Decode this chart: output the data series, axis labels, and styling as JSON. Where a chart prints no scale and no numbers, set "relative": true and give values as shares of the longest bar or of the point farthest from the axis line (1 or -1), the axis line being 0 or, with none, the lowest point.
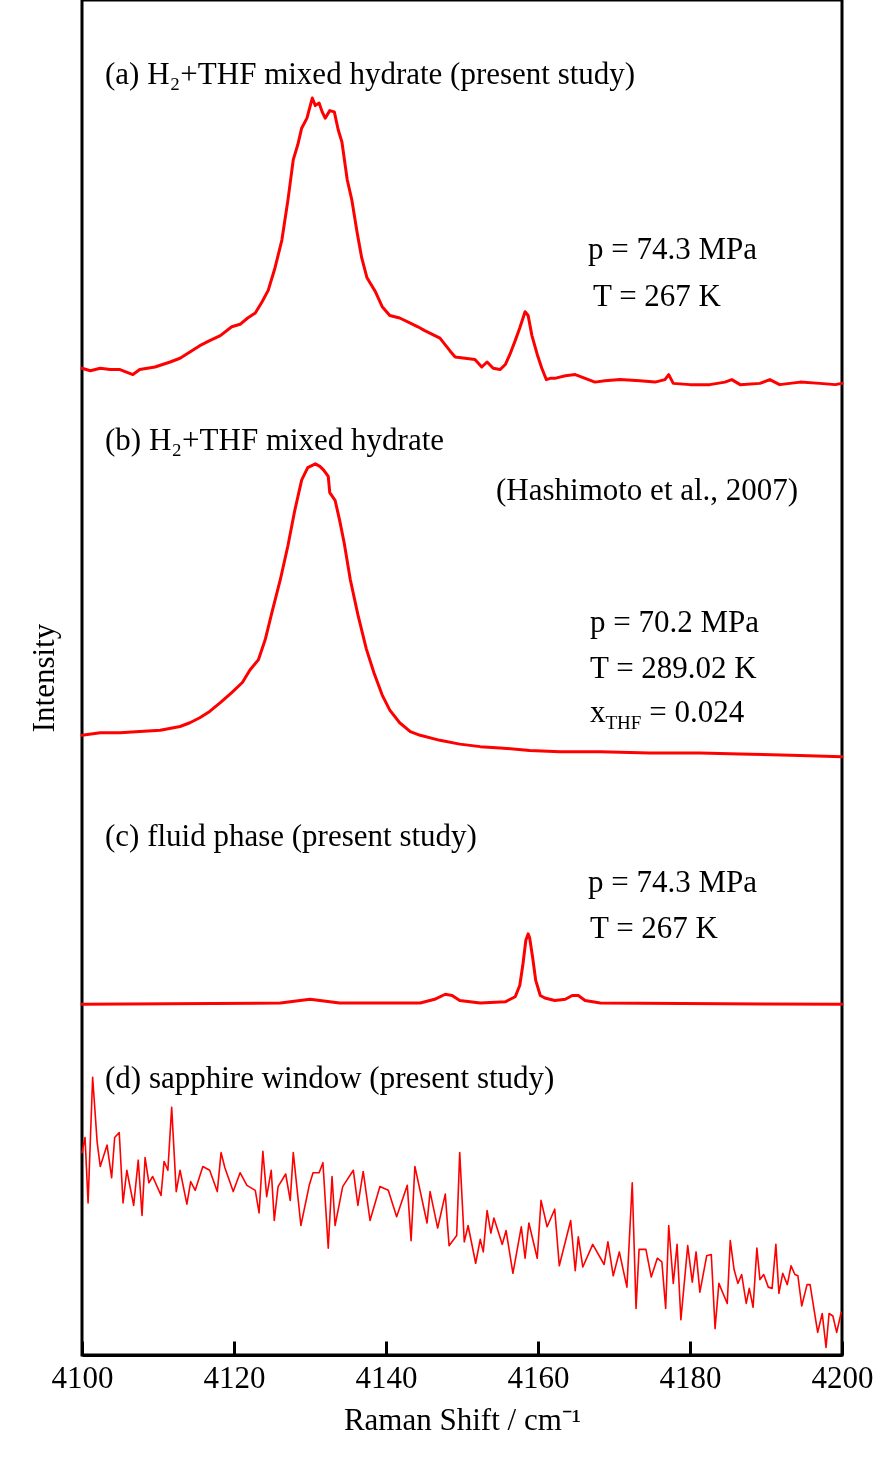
{
  "chart_data": {
    "type": "line",
    "relative": true,
    "xlabel": "Raman Shift / cm⁻¹",
    "ylabel": "Intensity",
    "xlim": [
      4100,
      4200
    ],
    "xticks": [
      4100,
      4120,
      4140,
      4160,
      4180,
      4200
    ],
    "grid": false,
    "marker": "none",
    "line_style": "solid",
    "annotations": [
      "(a) H₂+THF mixed hydrate (present study)",
      "p = 74.3 MPa",
      "T = 267 K",
      "(b) H₂+THF mixed hydrate",
      "(Hashimoto et al., 2007)",
      "p = 70.2 MPa",
      "T = 289.02 K",
      "x$_{THF}$ = 0.024",
      "(c) fluid phase (present study)",
      "p = 74.3 MPa",
      "T = 267 K",
      "(d) sapphire window (present study)"
    ],
    "series": [
      {
        "color": "#ff0000",
        "x": [
          4100,
          4101.1,
          4102.4,
          4103.7,
          4105.0,
          4106.7,
          4107.6,
          4109.6,
          4111.6,
          4112.9,
          4114.2,
          4115.5,
          4116.8,
          4118.2,
          4119.7,
          4120.8,
          4121.8,
          4122.8,
          4123.7,
          4124.5,
          4125.4,
          4126.3,
          4127.1,
          4127.8,
          4128.4,
          4128.9,
          4129.6,
          4130.3,
          4130.7,
          4131.2,
          4131.6,
          4132.0,
          4132.6,
          4133.2,
          4133.7,
          4134.2,
          4134.9,
          4135.5,
          4136.2,
          4136.8,
          4137.5,
          4138.6,
          4139.5,
          4140.5,
          4141.8,
          4143.2,
          4144.2,
          4145.1,
          4146.1,
          4147.1,
          4148.4,
          4149.1,
          4150.4,
          4151.7,
          4152.6,
          4153.3,
          4154.1,
          4155.0,
          4155.7,
          4156.3,
          4157.0,
          4157.6,
          4158.3,
          4158.7,
          4159.2,
          4159.9,
          4160.5,
          4161.1,
          4161.6,
          4162.2,
          4163.6,
          4164.9,
          4166.2,
          4167.5,
          4168.8,
          4170.8,
          4173.4,
          4175.4,
          4176.7,
          4177.2,
          4177.8,
          4180.0,
          4182.6,
          4184.6,
          4185.5,
          4186.6,
          4189.2,
          4190.5,
          4191.8,
          4194.5,
          4197.1,
          4199.1,
          4200
        ],
        "values": [
          0.785,
          0.783,
          0.785,
          0.784,
          0.784,
          0.78,
          0.784,
          0.786,
          0.79,
          0.793,
          0.798,
          0.803,
          0.807,
          0.811,
          0.818,
          0.82,
          0.825,
          0.829,
          0.838,
          0.847,
          0.865,
          0.887,
          0.919,
          0.951,
          0.963,
          0.976,
          0.984,
          1.0,
          0.994,
          0.996,
          0.989,
          0.984,
          0.99,
          0.989,
          0.975,
          0.965,
          0.935,
          0.919,
          0.893,
          0.873,
          0.857,
          0.846,
          0.834,
          0.827,
          0.825,
          0.821,
          0.818,
          0.815,
          0.812,
          0.809,
          0.799,
          0.794,
          0.793,
          0.792,
          0.786,
          0.79,
          0.785,
          0.784,
          0.788,
          0.796,
          0.807,
          0.817,
          0.83,
          0.827,
          0.811,
          0.796,
          0.785,
          0.776,
          0.777,
          0.777,
          0.779,
          0.78,
          0.777,
          0.774,
          0.775,
          0.776,
          0.775,
          0.774,
          0.776,
          0.78,
          0.773,
          0.772,
          0.772,
          0.774,
          0.776,
          0.772,
          0.773,
          0.776,
          0.772,
          0.774,
          0.773,
          0.772,
          0.773
        ]
      },
      {
        "color": "#ff0000",
        "x": [
          4100,
          4102.4,
          4105.0,
          4107.6,
          4110.3,
          4112.9,
          4114.2,
          4115.5,
          4116.8,
          4118.2,
          4119.7,
          4121.1,
          4122.1,
          4123.2,
          4124.1,
          4125.0,
          4126.1,
          4127.1,
          4128.0,
          4128.9,
          4129.7,
          4130.7,
          4131.3,
          4131.8,
          4132.4,
          4132.6,
          4133.3,
          4133.9,
          4134.5,
          4135.3,
          4136.3,
          4137.4,
          4138.4,
          4139.5,
          4140.5,
          4141.8,
          4143.2,
          4144.5,
          4147.1,
          4149.7,
          4152.4,
          4155.0,
          4158.9,
          4162.9,
          4168.2,
          4174.7,
          4181.3,
          4187.9,
          4194.5,
          4200
        ],
        "values": [
          0.493,
          0.495,
          0.495,
          0.496,
          0.497,
          0.5,
          0.503,
          0.507,
          0.512,
          0.519,
          0.527,
          0.535,
          0.545,
          0.553,
          0.569,
          0.591,
          0.617,
          0.644,
          0.672,
          0.696,
          0.706,
          0.709,
          0.707,
          0.704,
          0.699,
          0.686,
          0.68,
          0.664,
          0.646,
          0.617,
          0.589,
          0.562,
          0.543,
          0.525,
          0.513,
          0.503,
          0.496,
          0.493,
          0.489,
          0.486,
          0.484,
          0.483,
          0.481,
          0.48,
          0.48,
          0.479,
          0.479,
          0.478,
          0.477,
          0.476
        ]
      },
      {
        "color": "#ff0000",
        "x": [
          4100,
          4126.1,
          4128.7,
          4130.0,
          4131.3,
          4133.9,
          4144.5,
          4146.4,
          4147.8,
          4148.7,
          4149.7,
          4152.4,
          4155.7,
          4157.0,
          4157.6,
          4158.0,
          4158.4,
          4158.7,
          4158.9,
          4159.3,
          4159.7,
          4160.3,
          4160.9,
          4162.2,
          4163.6,
          4164.5,
          4165.3,
          4166.2,
          4168.2,
          4200
        ],
        "values": [
          0.279,
          0.28,
          0.282,
          0.283,
          0.282,
          0.28,
          0.28,
          0.283,
          0.287,
          0.286,
          0.282,
          0.28,
          0.281,
          0.285,
          0.294,
          0.31,
          0.33,
          0.335,
          0.332,
          0.316,
          0.298,
          0.286,
          0.284,
          0.282,
          0.283,
          0.286,
          0.286,
          0.282,
          0.28,
          0.279
        ]
      },
      {
        "color": "#ff0000",
        "x": [
          4100,
          4100.4,
          4100.8,
          4101.4,
          4102.0,
          4102.4,
          4103.3,
          4103.9,
          4104.3,
          4104.9,
          4105.4,
          4105.9,
          4106.8,
          4107.4,
          4107.9,
          4108.3,
          4108.8,
          4109.3,
          4110.4,
          4110.8,
          4111.3,
          4111.8,
          4112.4,
          4112.9,
          4113.8,
          4114.3,
          4114.9,
          4115.9,
          4116.8,
          4117.8,
          4118.3,
          4118.8,
          4119.9,
          4120.8,
          4121.7,
          4122.8,
          4123.3,
          4123.8,
          4124.3,
          4124.9,
          4125.3,
          4125.8,
          4126.8,
          4127.4,
          4127.8,
          4128.8,
          4129.9,
          4130.4,
          4131.2,
          4131.7,
          4132.4,
          4132.9,
          4133.3,
          4134.3,
          4135.7,
          4136.3,
          4137.0,
          4137.9,
          4139.2,
          4140.3,
          4141.4,
          4142.8,
          4143.3,
          4143.8,
          4145.4,
          4145.8,
          4146.8,
          4147.8,
          4148.3,
          4149.3,
          4149.7,
          4150.3,
          4150.8,
          4151.8,
          4152.4,
          4152.8,
          4153.3,
          4153.8,
          4154.2,
          4155.3,
          4155.8,
          4156.7,
          4157.8,
          4158.3,
          4158.8,
          4159.9,
          4160.4,
          4161.2,
          4162.2,
          4162.8,
          4164.3,
          4164.9,
          4165.3,
          4165.9,
          4167.2,
          4168.7,
          4169.2,
          4169.9,
          4170.7,
          4171.7,
          4172.4,
          4172.9,
          4173.3,
          4174.2,
          4174.9,
          4175.7,
          4176.3,
          4176.8,
          4177.2,
          4177.8,
          4178.3,
          4178.8,
          4179.7,
          4180.3,
          4180.8,
          4181.3,
          4182.2,
          4182.8,
          4183.3,
          4183.8,
          4184.9,
          4185.3,
          4185.8,
          4186.3,
          4186.8,
          4187.4,
          4187.8,
          4188.3,
          4188.8,
          4189.2,
          4189.7,
          4190.3,
          4190.8,
          4191.3,
          4191.7,
          4192.2,
          4192.8,
          4193.3,
          4193.8,
          4194.2,
          4194.7,
          4195.4,
          4195.8,
          4196.8,
          4197.4,
          4197.9,
          4198.3,
          4198.8,
          4199.3,
          4199.9
        ],
        "values": [
          0.161,
          0.173,
          0.121,
          0.221,
          0.169,
          0.15,
          0.167,
          0.141,
          0.173,
          0.177,
          0.121,
          0.147,
          0.119,
          0.155,
          0.111,
          0.157,
          0.137,
          0.142,
          0.127,
          0.154,
          0.147,
          0.197,
          0.13,
          0.147,
          0.12,
          0.138,
          0.131,
          0.15,
          0.147,
          0.13,
          0.161,
          0.149,
          0.13,
          0.145,
          0.135,
          0.131,
          0.113,
          0.162,
          0.126,
          0.147,
          0.107,
          0.134,
          0.144,
          0.123,
          0.161,
          0.103,
          0.135,
          0.145,
          0.145,
          0.153,
          0.085,
          0.142,
          0.103,
          0.134,
          0.147,
          0.119,
          0.146,
          0.107,
          0.134,
          0.131,
          0.11,
          0.135,
          0.091,
          0.15,
          0.105,
          0.13,
          0.101,
          0.128,
          0.087,
          0.095,
          0.161,
          0.09,
          0.103,
          0.073,
          0.092,
          0.082,
          0.115,
          0.097,
          0.109,
          0.088,
          0.099,
          0.065,
          0.102,
          0.077,
          0.105,
          0.077,
          0.123,
          0.102,
          0.116,
          0.071,
          0.107,
          0.067,
          0.094,
          0.07,
          0.088,
          0.072,
          0.09,
          0.063,
          0.082,
          0.054,
          0.137,
          0.037,
          0.084,
          0.084,
          0.062,
          0.077,
          0.074,
          0.037,
          0.103,
          0.057,
          0.088,
          0.028,
          0.087,
          0.058,
          0.082,
          0.05,
          0.079,
          0.08,
          0.021,
          0.057,
          0.041,
          0.091,
          0.068,
          0.057,
          0.064,
          0.041,
          0.053,
          0.038,
          0.085,
          0.06,
          0.064,
          0.054,
          0.053,
          0.088,
          0.049,
          0.065,
          0.056,
          0.071,
          0.064,
          0.063,
          0.039,
          0.056,
          0.056,
          0.018,
          0.033,
          0.006,
          0.033,
          0.031,
          0.018,
          0.034
        ]
      }
    ]
  }
}
